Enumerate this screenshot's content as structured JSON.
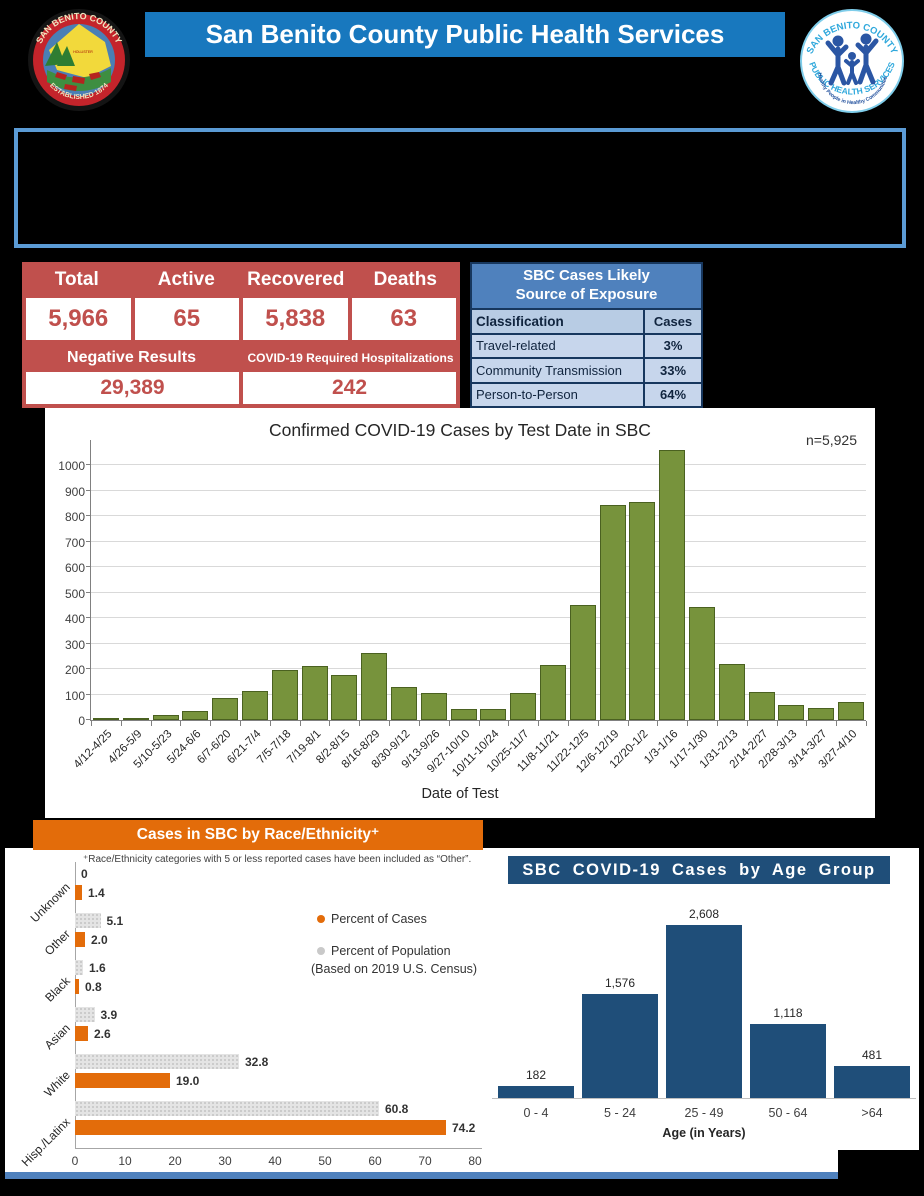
{
  "header": {
    "title": "San Benito County Public Health Services",
    "seal": {
      "arc_top": "SAN BENITO COUNTY",
      "arc_bottom": "ESTABLISHED 1874",
      "place": "HOLLISTER"
    },
    "phs_logo": {
      "arc_top": "SAN BENITO COUNTY",
      "arc_bottom": "PUBLIC HEALTH SERVICES",
      "inner_arc": "Healthy People in Healthy Communities"
    }
  },
  "stats": {
    "headers": [
      "Total",
      "Active",
      "Recovered",
      "Deaths"
    ],
    "values": [
      "5,966",
      "65",
      "5,838",
      "63"
    ],
    "secondary_headers": [
      "Negative Results",
      "COVID-19 Required Hospitalizations"
    ],
    "secondary_values": [
      "29,389",
      "242"
    ]
  },
  "exposure": {
    "title_line1": "SBC Cases Likely",
    "title_line2": "Source of Exposure",
    "col_headers": [
      "Classification",
      "Cases"
    ],
    "rows": [
      {
        "label": "Travel-related",
        "value": "3%"
      },
      {
        "label": "Community Transmission",
        "value": "33%"
      },
      {
        "label": "Person-to-Person",
        "value": "64%"
      }
    ]
  },
  "chart_data": [
    {
      "id": "cases_by_test_date",
      "type": "bar",
      "title": "Confirmed COVID-19 Cases by Test Date in SBC",
      "annotation": "n=5,925",
      "xlabel": "Date of Test",
      "ylabel": "",
      "ylim": [
        0,
        1100
      ],
      "grid": true,
      "bar_color": "#77933C",
      "yticks": [
        0,
        100,
        200,
        300,
        400,
        500,
        600,
        700,
        800,
        900,
        1000
      ],
      "categories": [
        "4/12-4/25",
        "4/26-5/9",
        "5/10-5/23",
        "5/24-6/6",
        "6/7-6/20",
        "6/21-7/4",
        "7/5-7/18",
        "7/19-8/1",
        "8/2-8/15",
        "8/16-8/29",
        "8/30-9/12",
        "9/13-9/26",
        "9/27-10/10",
        "10/11-10/24",
        "10/25-11/7",
        "11/8-11/21",
        "11/22-12/5",
        "12/6-12/19",
        "12/20-1/2",
        "1/3-1/16",
        "1/17-1/30",
        "1/31-2/13",
        "2/14-2/27",
        "2/28-3/13",
        "3/14-3/27",
        "3/27-4/10"
      ],
      "values": [
        8,
        8,
        18,
        35,
        85,
        115,
        195,
        210,
        175,
        262,
        130,
        105,
        42,
        45,
        105,
        215,
        450,
        845,
        855,
        1060,
        445,
        218,
        110,
        60,
        48,
        70
      ]
    },
    {
      "id": "race_ethnicity",
      "type": "grouped_bar_horizontal",
      "title": "Cases in SBC by Race/Ethnicity⁺",
      "footnote": "⁺Race/Ethnicity categories with 5 or less reported cases have been included as “Other”.",
      "legend_note": "(Based on 2019 U.S. Census)",
      "xlim": [
        0,
        80
      ],
      "xticks": [
        0,
        10,
        20,
        30,
        40,
        50,
        60,
        70,
        80
      ],
      "categories": [
        "Unknown",
        "Other",
        "Black",
        "Asian",
        "White",
        "Hisp./Latinx"
      ],
      "series": [
        {
          "name": "Percent of Cases",
          "color": "#E36C0A",
          "values": [
            1.4,
            2.0,
            0.8,
            2.6,
            19.0,
            74.2
          ],
          "labels": [
            "1.4",
            "2.0",
            "0.8",
            "2.6",
            "19.0",
            "74.2"
          ]
        },
        {
          "name": "Percent of Population",
          "color": "#D9D9D9",
          "values": [
            0,
            5.1,
            1.6,
            3.9,
            32.8,
            60.8
          ],
          "labels": [
            "0",
            "5.1",
            "1.6",
            "3.9",
            "32.8",
            "60.8"
          ]
        }
      ]
    },
    {
      "id": "age_group",
      "type": "bar",
      "title": "SBC COVID-19 Cases by Age Group",
      "xlabel": "Age (in Years)",
      "ylim": [
        0,
        2900
      ],
      "grid": false,
      "bar_color": "#1F4E79",
      "categories": [
        "0 - 4",
        "5 - 24",
        "25 - 49",
        "50 - 64",
        ">64"
      ],
      "values": [
        182,
        1576,
        2608,
        1118,
        481
      ],
      "value_labels": [
        "182",
        "1,576",
        "2,608",
        "1,118",
        "481"
      ]
    }
  ],
  "colors": {
    "header_blue": "#1878BE",
    "announce_border_blue": "#5B9BD5",
    "stats_red": "#C0504D",
    "exposure_title_blue": "#4F81BD",
    "exposure_header_blue": "#B8CCE4",
    "exposure_row_blue": "#C7D6EC",
    "olive_bar": "#77933C",
    "orange": "#E36C0A",
    "population_gray": "#D9D9D9",
    "navy_bar": "#1F4E79",
    "divider_blue": "#4F81BD"
  }
}
